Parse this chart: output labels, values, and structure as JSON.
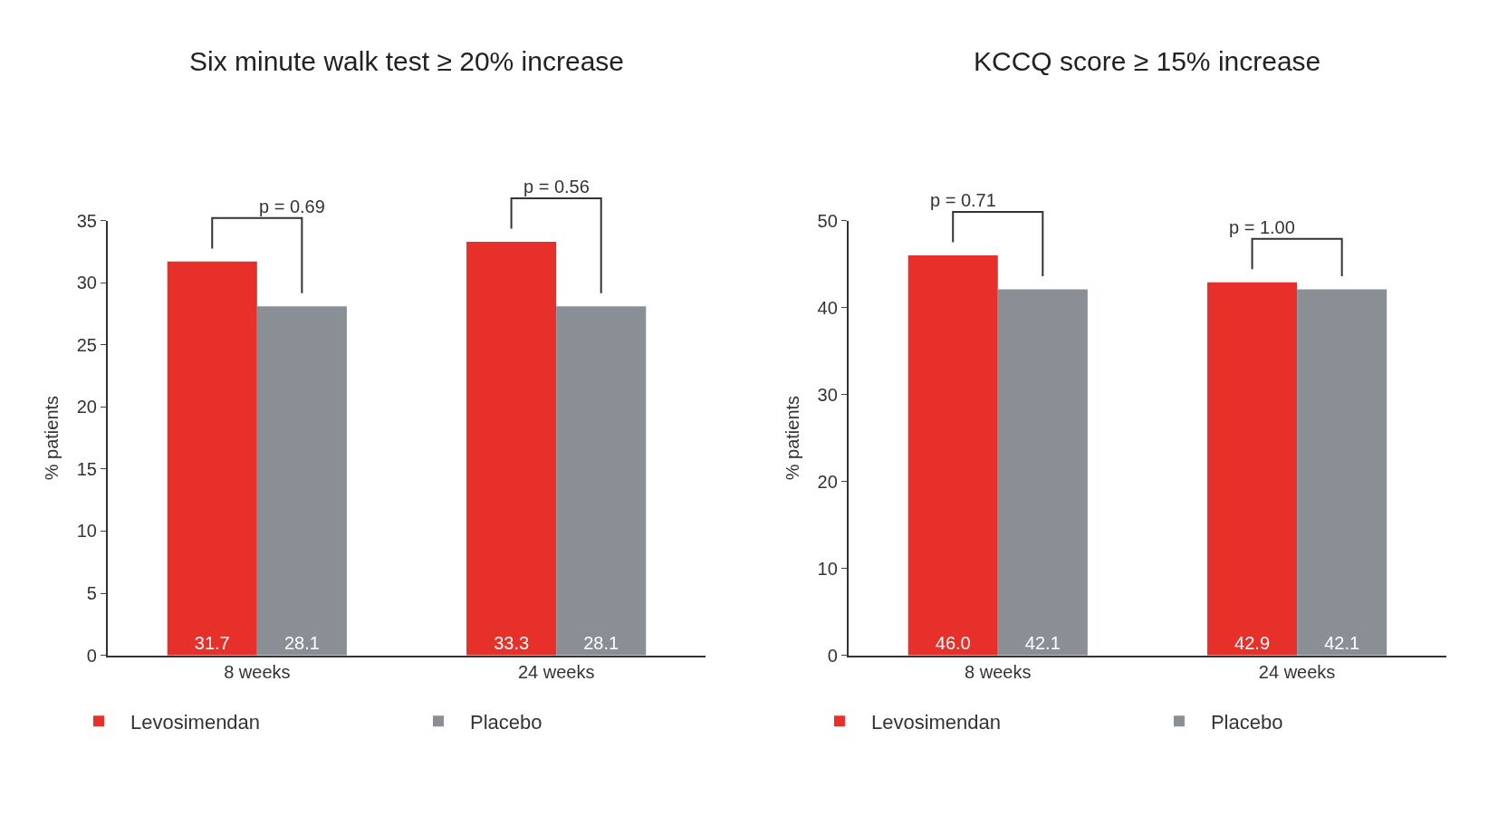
{
  "chart_data": [
    {
      "type": "bar",
      "title": "Six minute walk test ≥ 20% increase",
      "ylabel": "% patients",
      "categories": [
        "8 weeks",
        "24 weeks"
      ],
      "series": [
        {
          "name": "Levosimendan",
          "color": "#e8302a",
          "values": [
            31.7,
            33.3
          ],
          "value_labels": [
            "31.7",
            "33.3"
          ]
        },
        {
          "name": "Placebo",
          "color": "#8a8f96",
          "values": [
            28.1,
            28.1
          ],
          "value_labels": [
            "28.1",
            "28.1"
          ]
        }
      ],
      "ylim": [
        0,
        35
      ],
      "yticks": [
        0,
        5,
        10,
        15,
        20,
        25,
        30,
        35
      ],
      "legend": "bottom",
      "annotations": [
        "p = 0.69",
        "p = 0.56"
      ]
    },
    {
      "type": "bar",
      "title": "KCCQ score ≥ 15% increase",
      "ylabel": "% patients",
      "categories": [
        "8 weeks",
        "24 weeks"
      ],
      "series": [
        {
          "name": "Levosimendan",
          "color": "#e8302a",
          "values": [
            46.0,
            42.9
          ],
          "value_labels": [
            "46.0",
            "42.9"
          ]
        },
        {
          "name": "Placebo",
          "color": "#8a8f96",
          "values": [
            42.1,
            42.1
          ],
          "value_labels": [
            "42.1",
            "42.1"
          ]
        }
      ],
      "ylim": [
        0,
        50
      ],
      "yticks": [
        0,
        10,
        20,
        30,
        40,
        50
      ],
      "legend": "bottom",
      "annotations": [
        "p = 0.71",
        "p = 1.00"
      ]
    }
  ]
}
